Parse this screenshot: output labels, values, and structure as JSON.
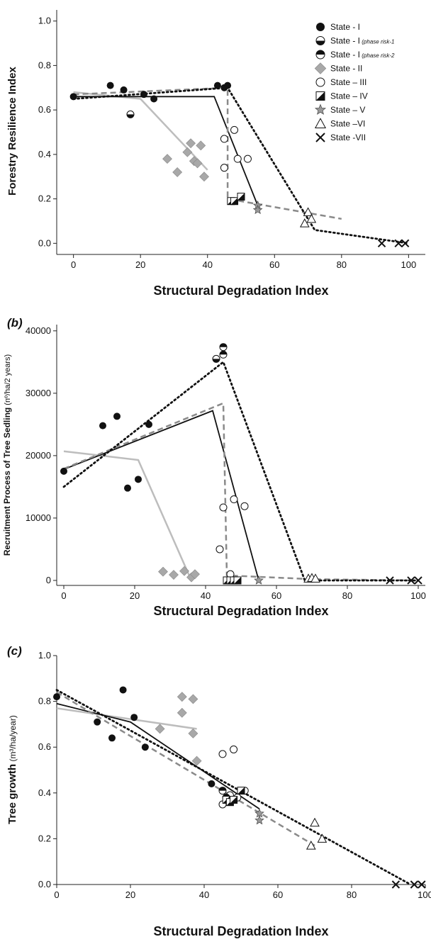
{
  "chart_data": [
    {
      "type": "scatter",
      "panel_label": "",
      "xlabel": "Structural Degradation Index",
      "ylabel": "Forestry Resilience Index",
      "xlim": [
        -5,
        105
      ],
      "ylim": [
        -0.05,
        1.05
      ],
      "xticks": [
        "0",
        "20",
        "40",
        "60",
        "80",
        "100"
      ],
      "yticks": [
        "0.0",
        "0.2",
        "0.4",
        "0.6",
        "0.8",
        "1.0"
      ],
      "legend": {
        "placement": "top-right",
        "entries": [
          {
            "label": "State - I",
            "note": "",
            "marker": "filled-circle"
          },
          {
            "label": "State - I",
            "note": "(phase risk-1",
            "marker": "half-circle-bottom"
          },
          {
            "label": "State - I",
            "note": "(phase risk-2",
            "marker": "half-circle-top"
          },
          {
            "label": "State - II",
            "note": "",
            "marker": "gray-diamond"
          },
          {
            "label": "State – III",
            "note": "",
            "marker": "open-circle"
          },
          {
            "label": "State – IV",
            "note": "",
            "marker": "half-square"
          },
          {
            "label": "State – V",
            "note": "",
            "marker": "star"
          },
          {
            "label": "State –VI",
            "note": "",
            "marker": "triangle"
          },
          {
            "label": "State -VII",
            "note": "",
            "marker": "cross"
          }
        ]
      },
      "series": [
        {
          "marker": "filled-circle",
          "points": [
            [
              0,
              0.66
            ],
            [
              11,
              0.71
            ],
            [
              15,
              0.69
            ],
            [
              21,
              0.67
            ],
            [
              24,
              0.65
            ],
            [
              43,
              0.71
            ],
            [
              45,
              0.7
            ],
            [
              46,
              0.71
            ]
          ]
        },
        {
          "marker": "half-circle-bottom",
          "points": [
            [
              17,
              0.58
            ]
          ]
        },
        {
          "marker": "gray-diamond",
          "points": [
            [
              28,
              0.38
            ],
            [
              31,
              0.32
            ],
            [
              34,
              0.41
            ],
            [
              35,
              0.45
            ],
            [
              36,
              0.37
            ],
            [
              37,
              0.36
            ],
            [
              38,
              0.44
            ],
            [
              39,
              0.3
            ]
          ]
        },
        {
          "marker": "open-circle",
          "points": [
            [
              45,
              0.47
            ],
            [
              45,
              0.34
            ],
            [
              48,
              0.51
            ],
            [
              49,
              0.38
            ],
            [
              52,
              0.38
            ]
          ]
        },
        {
          "marker": "half-square",
          "points": [
            [
              47,
              0.19
            ],
            [
              48,
              0.19
            ],
            [
              50,
              0.21
            ]
          ]
        },
        {
          "marker": "star",
          "points": [
            [
              55,
              0.17
            ],
            [
              55,
              0.15
            ]
          ]
        },
        {
          "marker": "triangle",
          "points": [
            [
              69,
              0.09
            ],
            [
              70,
              0.14
            ],
            [
              71,
              0.11
            ]
          ]
        },
        {
          "marker": "cross",
          "points": [
            [
              92,
              0.0
            ],
            [
              97,
              0.0
            ],
            [
              99,
              0.0
            ]
          ]
        }
      ],
      "fit_lines": [
        {
          "style": "solid-gray",
          "points": [
            [
              0,
              0.68
            ],
            [
              20,
              0.65
            ],
            [
              40,
              0.33
            ]
          ]
        },
        {
          "style": "solid-black",
          "points": [
            [
              0,
              0.66
            ],
            [
              42,
              0.66
            ],
            [
              55,
              0.17
            ]
          ]
        },
        {
          "style": "dashed-gray",
          "points": [
            [
              0,
              0.67
            ],
            [
              46,
              0.7
            ],
            [
              46,
              0.2
            ],
            [
              80,
              0.11
            ]
          ]
        },
        {
          "style": "dotted-black",
          "points": [
            [
              0,
              0.65
            ],
            [
              46,
              0.7
            ],
            [
              72,
              0.06
            ],
            [
              100,
              0.0
            ]
          ]
        }
      ]
    },
    {
      "type": "scatter",
      "panel_label": "(b)",
      "xlabel": "Structural Degradation Index",
      "ylabel": "Recruitment Process of Tree Sedling",
      "ylabel_unit": "(nº/ha/2 years)",
      "xlim": [
        -2,
        102
      ],
      "ylim": [
        -800,
        41000
      ],
      "xticks": [
        "0",
        "20",
        "40",
        "60",
        "80",
        "100"
      ],
      "yticks": [
        "0",
        "10000",
        "20000",
        "30000",
        "40000"
      ],
      "series": [
        {
          "marker": "filled-circle",
          "points": [
            [
              0,
              17500
            ],
            [
              11,
              24800
            ],
            [
              15,
              26300
            ],
            [
              18,
              14800
            ],
            [
              21,
              16200
            ],
            [
              24,
              25000
            ]
          ]
        },
        {
          "marker": "half-circle-top",
          "points": [
            [
              45,
              36200
            ],
            [
              45,
              37400
            ]
          ]
        },
        {
          "marker": "half-circle-bottom",
          "points": [
            [
              43,
              35500
            ]
          ]
        },
        {
          "marker": "gray-diamond",
          "points": [
            [
              28,
              1400
            ],
            [
              31,
              900
            ],
            [
              34,
              1500
            ],
            [
              36,
              500
            ],
            [
              37,
              1000
            ]
          ]
        },
        {
          "marker": "open-circle",
          "points": [
            [
              44,
              5000
            ],
            [
              45,
              11700
            ],
            [
              47,
              1000
            ],
            [
              48,
              13000
            ],
            [
              51,
              11900
            ]
          ]
        },
        {
          "marker": "half-square",
          "points": [
            [
              46,
              0
            ],
            [
              47,
              0
            ],
            [
              48,
              0
            ],
            [
              49,
              0
            ]
          ]
        },
        {
          "marker": "star",
          "points": [
            [
              55,
              0
            ]
          ]
        },
        {
          "marker": "triangle",
          "points": [
            [
              69,
              300
            ],
            [
              70,
              400
            ],
            [
              71,
              300
            ]
          ]
        },
        {
          "marker": "cross",
          "points": [
            [
              92,
              0
            ],
            [
              98,
              0
            ],
            [
              100,
              0
            ]
          ]
        }
      ],
      "fit_lines": [
        {
          "style": "solid-gray",
          "points": [
            [
              0,
              20700
            ],
            [
              21,
              19300
            ],
            [
              36,
              0
            ]
          ]
        },
        {
          "style": "solid-black",
          "points": [
            [
              0,
              17800
            ],
            [
              42,
              27200
            ],
            [
              55,
              0
            ]
          ]
        },
        {
          "style": "dashed-gray",
          "points": [
            [
              0,
              17900
            ],
            [
              45,
              28400
            ],
            [
              46,
              800
            ],
            [
              70,
              200
            ],
            [
              100,
              0
            ]
          ]
        },
        {
          "style": "dotted-black",
          "points": [
            [
              0,
              15000
            ],
            [
              45,
              35000
            ],
            [
              68,
              0
            ],
            [
              100,
              0
            ]
          ]
        }
      ]
    },
    {
      "type": "scatter",
      "panel_label": "(c)",
      "xlabel": "Structural Degradation Index",
      "ylabel": "Tree growth",
      "ylabel_unit": "(m³/ha/year)",
      "xlim": [
        0,
        100
      ],
      "ylim": [
        0,
        1.0
      ],
      "xticks": [
        "0",
        "20",
        "40",
        "60",
        "80",
        "100"
      ],
      "yticks": [
        "0.0",
        "0.2",
        "0.4",
        "0.6",
        "0.8",
        "1.0"
      ],
      "series": [
        {
          "marker": "filled-circle",
          "points": [
            [
              0,
              0.82
            ],
            [
              11,
              0.71
            ],
            [
              15,
              0.64
            ],
            [
              18,
              0.85
            ],
            [
              21,
              0.73
            ],
            [
              24,
              0.6
            ],
            [
              42,
              0.44
            ]
          ]
        },
        {
          "marker": "gray-diamond",
          "points": [
            [
              28,
              0.68
            ],
            [
              34,
              0.82
            ],
            [
              34,
              0.75
            ],
            [
              37,
              0.81
            ],
            [
              37,
              0.66
            ],
            [
              38,
              0.54
            ]
          ]
        },
        {
          "marker": "open-circle",
          "points": [
            [
              45,
              0.57
            ],
            [
              45,
              0.35
            ],
            [
              47,
              0.39
            ],
            [
              48,
              0.59
            ],
            [
              49,
              0.38
            ],
            [
              51,
              0.41
            ]
          ]
        },
        {
          "marker": "half-circle-top",
          "points": [
            [
              46,
              0.38
            ],
            [
              45,
              0.41
            ]
          ]
        },
        {
          "marker": "half-square",
          "points": [
            [
              46,
              0.37
            ],
            [
              47,
              0.36
            ],
            [
              48,
              0.37
            ],
            [
              50,
              0.41
            ]
          ]
        },
        {
          "marker": "star",
          "points": [
            [
              55,
              0.31
            ],
            [
              55,
              0.28
            ]
          ]
        },
        {
          "marker": "triangle",
          "points": [
            [
              69,
              0.17
            ],
            [
              70,
              0.27
            ],
            [
              72,
              0.2
            ]
          ]
        },
        {
          "marker": "cross",
          "points": [
            [
              92,
              0.0
            ],
            [
              97,
              0.0
            ],
            [
              99,
              0.0
            ]
          ]
        }
      ],
      "fit_lines": [
        {
          "style": "solid-gray",
          "points": [
            [
              0,
              0.77
            ],
            [
              38,
              0.68
            ]
          ]
        },
        {
          "style": "solid-black",
          "points": [
            [
              0,
              0.79
            ],
            [
              20,
              0.71
            ],
            [
              55,
              0.33
            ]
          ]
        },
        {
          "style": "dashed-gray",
          "points": [
            [
              0,
              0.84
            ],
            [
              70,
              0.17
            ]
          ]
        },
        {
          "style": "dotted-black",
          "points": [
            [
              0,
              0.85
            ],
            [
              96,
              0.0
            ]
          ]
        }
      ]
    }
  ]
}
